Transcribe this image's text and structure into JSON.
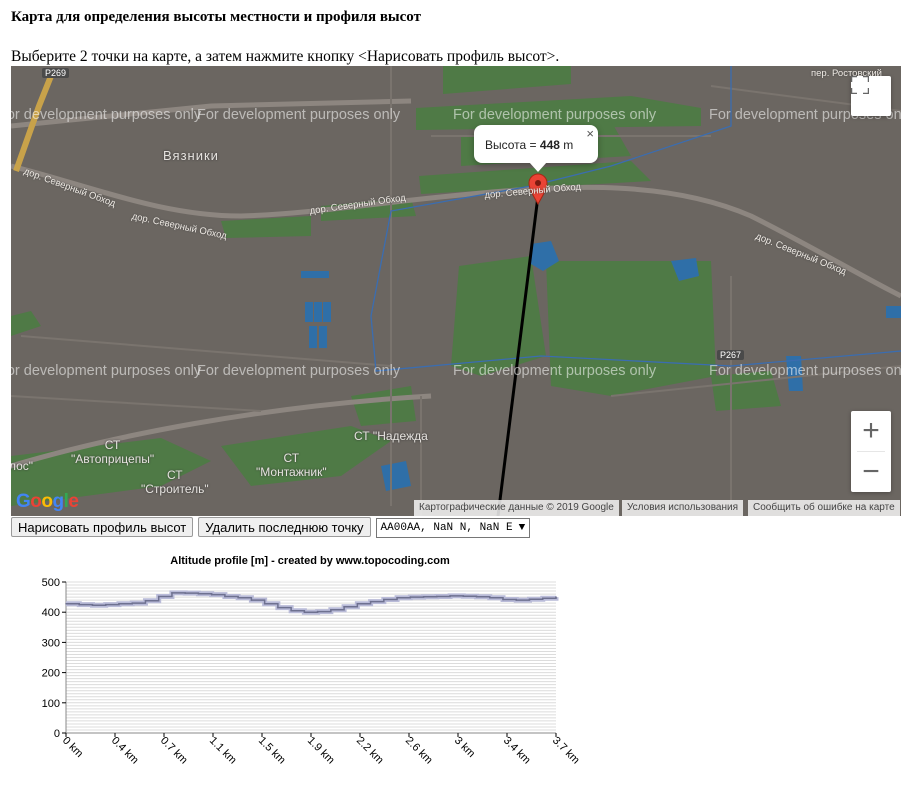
{
  "page": {
    "title": "Карта для определения высоты местности и профиля высот",
    "instructions": "Выберите 2 точки на карте, а затем нажмите кнопку <Нарисовать профиль высот>."
  },
  "map": {
    "watermark": "For development purposes only",
    "labels": {
      "town": "Вязники",
      "street_top_right": "пер. Ростовский",
      "road_1": "дор. Северный Обход",
      "road_2": "дор. Северный Обход",
      "road_3": "дор. Северный Обход",
      "road_4": "дор. Северный Обход",
      "road_5": "дор. Северный Обход",
      "st_autopritsepy": "СТ\n\"Автоприцепы\"",
      "st_montazhnik": "СТ\n\"Монтажник\"",
      "st_stroitel": "СТ\n\"Строитель\"",
      "st_nadezhda": "СТ \"Надежда",
      "partial_left": "лос\""
    },
    "shields": {
      "r269": "Р269",
      "r267": "Р267"
    },
    "infowindow": {
      "prefix": "Высота = ",
      "value": "448",
      "unit": " m",
      "close": "×"
    },
    "google_logo": "Google",
    "attribution": {
      "data": "Картографические данные © 2019 Google",
      "terms": "Условия использования",
      "report": "Сообщить об ошибке на карте"
    },
    "controls": {
      "zoom_in": "+",
      "zoom_out": "−"
    }
  },
  "buttons": {
    "draw_profile": "Нарисовать профиль высот",
    "delete_last_point": "Удалить последнюю точку"
  },
  "select": {
    "value": "AA00AA, NaN N, NaN E",
    "arrow": "▼"
  },
  "chart_data": {
    "type": "line",
    "title": "Altitude profile [m] - created by www.topocoding.com",
    "xlabel": "",
    "ylabel": "",
    "ylim": [
      0,
      500
    ],
    "xlim": [
      0,
      3.7
    ],
    "yticks": [
      0,
      100,
      200,
      300,
      400,
      500
    ],
    "xtick_labels": [
      "0 km",
      "0.4 km",
      "0.7 km",
      "1.1 km",
      "1.5 km",
      "1.9 km",
      "2.2 km",
      "2.6 km",
      "3 km",
      "3.4 km",
      "3.7 km"
    ],
    "grid": true,
    "series": [
      {
        "name": "",
        "x": [
          0,
          0.1,
          0.2,
          0.3,
          0.4,
          0.5,
          0.6,
          0.7,
          0.8,
          0.9,
          1.0,
          1.1,
          1.2,
          1.3,
          1.4,
          1.5,
          1.6,
          1.7,
          1.8,
          1.9,
          2.0,
          2.1,
          2.2,
          2.3,
          2.4,
          2.5,
          2.6,
          2.7,
          2.8,
          2.9,
          3.0,
          3.1,
          3.2,
          3.3,
          3.4,
          3.5,
          3.6,
          3.7
        ],
        "values": [
          428,
          425,
          423,
          425,
          428,
          430,
          438,
          452,
          464,
          463,
          461,
          458,
          452,
          448,
          440,
          428,
          415,
          405,
          400,
          402,
          408,
          418,
          428,
          435,
          442,
          448,
          450,
          451,
          452,
          454,
          453,
          451,
          448,
          442,
          440,
          443,
          446,
          450
        ]
      }
    ]
  }
}
